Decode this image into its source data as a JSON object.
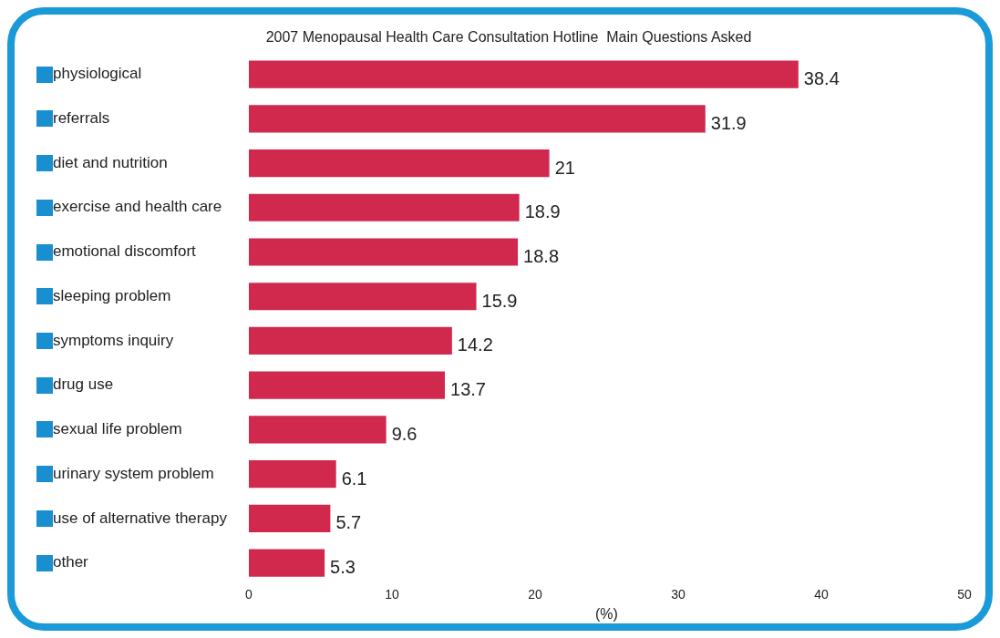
{
  "chart_data": {
    "type": "bar",
    "orientation": "horizontal",
    "title": "2007 Menopausal Health Care Consultation Hotline  Main Questions Asked",
    "xlabel": "(%)",
    "categories": [
      "physiological",
      "referrals",
      "diet and nutrition",
      "exercise and health care",
      "emotional discomfort",
      "sleeping problem",
      "symptoms inquiry",
      "drug use",
      "sexual life problem",
      "urinary system problem",
      "use of alternative therapy",
      "other"
    ],
    "values": [
      38.4,
      31.9,
      21,
      18.9,
      18.8,
      15.9,
      14.2,
      13.7,
      9.6,
      6.1,
      5.7,
      5.3
    ],
    "color": "#d0294d",
    "xlim": [
      0,
      50
    ],
    "xticks": [
      0,
      10,
      20,
      30,
      40,
      50
    ],
    "grid": false,
    "data_labels": true
  }
}
